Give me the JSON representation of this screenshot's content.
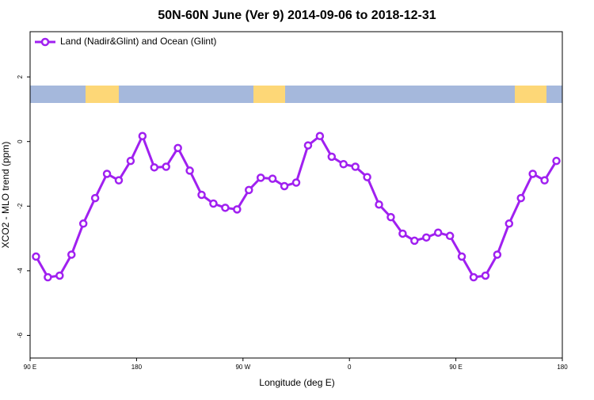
{
  "chart_data": {
    "type": "line",
    "title": "50N-60N June (Ver 9)   2014-09-06 to 2018-12-31",
    "x_label": "Longitude (deg E)",
    "y_label": "XCO2 - MLO trend (ppm)",
    "x": [
      95,
      105,
      115,
      125,
      135,
      145,
      155,
      165,
      175,
      185,
      195,
      205,
      215,
      225,
      235,
      245,
      255,
      265,
      275,
      285,
      295,
      305,
      315,
      325,
      335,
      345,
      355,
      365,
      375,
      385,
      395,
      405,
      415,
      425,
      435,
      445,
      455,
      465,
      475,
      485,
      495,
      505,
      515,
      525,
      535
    ],
    "series": [
      {
        "name": "Land (Nadir&Glint) and Ocean (Glint)",
        "color": "#a020f0",
        "values": [
          -3.56,
          -4.2,
          -4.15,
          -3.5,
          -2.54,
          -1.75,
          -1.0,
          -1.2,
          -0.6,
          0.17,
          -0.8,
          -0.78,
          -0.2,
          -0.9,
          -1.65,
          -1.92,
          -2.05,
          -2.1,
          -1.5,
          -1.12,
          -1.15,
          -1.38,
          -1.27,
          -0.12,
          0.17,
          -0.47,
          -0.7,
          -0.78,
          -1.1,
          -1.95,
          -2.34,
          -2.85,
          -3.07,
          -2.97,
          -2.82,
          -2.92,
          -3.56,
          -4.2,
          -4.15,
          -3.5,
          -2.54,
          -1.75,
          -1.0,
          -1.2,
          -0.6
        ]
      }
    ],
    "xlim": [
      90,
      540
    ],
    "xticks": [
      {
        "value": 90,
        "label": "90 E"
      },
      {
        "value": 180,
        "label": "180"
      },
      {
        "value": 270,
        "label": "90 W"
      },
      {
        "value": 360,
        "label": "0"
      },
      {
        "value": 450,
        "label": "90 E"
      },
      {
        "value": 540,
        "label": "180"
      }
    ],
    "ylim": [
      -6.7,
      3.4
    ],
    "yticks": [
      -6,
      -4,
      -2,
      0,
      2
    ],
    "legend": "top-left"
  }
}
